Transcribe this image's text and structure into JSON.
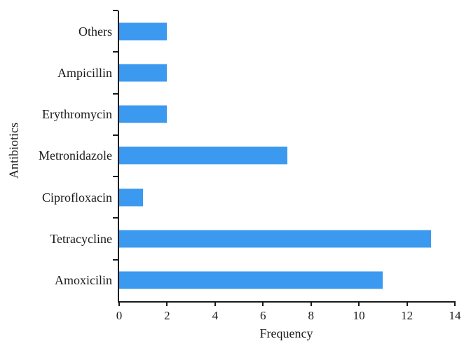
{
  "figure": {
    "background": "#ffffff"
  },
  "chart_data": {
    "type": "bar",
    "orientation": "horizontal",
    "title": "",
    "xlabel": "Frequency",
    "ylabel": "Antibiotics",
    "categories": [
      "Others",
      "Ampicillin",
      "Erythromycin",
      "Metronidazole",
      "Ciprofloxacin",
      "Tetracycline",
      "Amoxicilin"
    ],
    "values": [
      2,
      2,
      2,
      7,
      1,
      13,
      11
    ],
    "xlim": [
      0,
      14
    ],
    "xticks": [
      0,
      2,
      4,
      6,
      8,
      10,
      12,
      14
    ],
    "grid": false,
    "legend": "none",
    "bar_color": "#3c99f0",
    "axis_color": "#1a1a1a"
  }
}
